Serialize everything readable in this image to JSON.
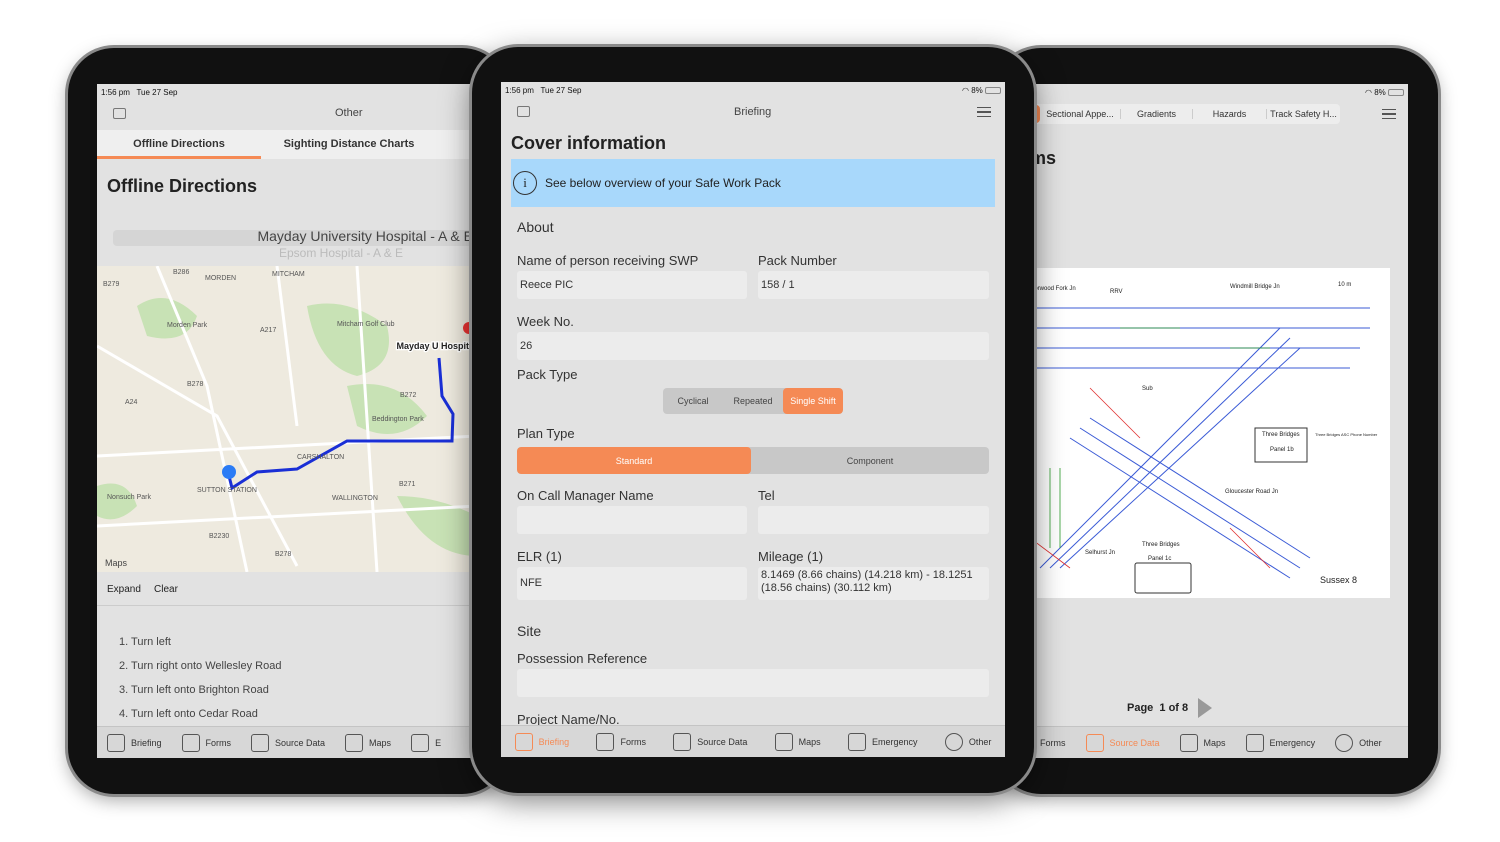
{
  "status": {
    "time": "1:56 pm",
    "date": "Tue 27 Sep",
    "battery": "8%"
  },
  "left": {
    "nav_title": "Other",
    "tabs": [
      "Offline Directions",
      "Sighting Distance Charts"
    ],
    "heading": "Offline Directions",
    "picker": {
      "selected": "Mayday University Hospital - A & E",
      "next": "Epsom Hospital - A & E"
    },
    "map": {
      "labels": [
        "MORDEN",
        "MITCHAM",
        "Morden Park",
        "Mitcham Golf Club",
        "Beddington Park",
        "CARSHALTON",
        "SUTTON STATION",
        "WALLINGTON",
        "Nonsuch Park",
        "Mayday U Hospita"
      ],
      "roads": [
        "B286",
        "B279",
        "A217",
        "B278",
        "B272",
        "A24",
        "B271",
        "B2230",
        "B278"
      ],
      "attribution": "Maps",
      "route_color": "#1a2fd6"
    },
    "actions": [
      "Expand",
      "Clear"
    ],
    "directions": [
      "1. Turn left",
      "2. Turn right onto Wellesley Road",
      "3. Turn left onto Brighton Road",
      "4. Turn left onto Cedar Road"
    ],
    "tabbar": [
      "Briefing",
      "Forms",
      "Source Data",
      "Maps",
      "E"
    ]
  },
  "center": {
    "nav_title": "Briefing",
    "heading": "Cover information",
    "banner": "See below overview of your Safe Work Pack",
    "about": "About",
    "name_label": "Name of person receiving SWP",
    "name_value": "Reece PIC",
    "pack_label": "Pack Number",
    "pack_value": "158 / 1",
    "week_label": "Week No.",
    "week_value": "26",
    "pack_type_label": "Pack Type",
    "pack_types": [
      "Cyclical",
      "Repeated",
      "Single Shift"
    ],
    "pack_type_selected": "Single Shift",
    "plan_type_label": "Plan Type",
    "plan_types": [
      "Standard",
      "Component"
    ],
    "plan_type_selected": "Standard",
    "oncall_label": "On Call Manager Name",
    "oncall_value": "",
    "tel_label": "Tel",
    "tel_value": "",
    "elr_label": "ELR (1)",
    "elr_value": "NFE",
    "mileage_label": "Mileage (1)",
    "mileage_value": "8.1469 (8.66 chains) (14.218 km) - 18.1251 (18.56 chains) (30.112 km)",
    "site": "Site",
    "possession_label": "Possession Reference",
    "possession_value": "",
    "project_label": "Project Name/No.",
    "tabbar": [
      "Briefing",
      "Forms",
      "Source Data",
      "Maps",
      "Emergency",
      "Other"
    ],
    "accent": "#f58a55",
    "banner_color": "#a8d8fb"
  },
  "right": {
    "segments": [
      "Sectional Appe...",
      "Gradients",
      "Hazards",
      "Track Safety H..."
    ],
    "heading_fragment": "ms",
    "diagram": {
      "labels": [
        "Sussex 8",
        "Three Bridges",
        "Panel 1c",
        "Three Bridges",
        "Panel 1b",
        "Three Bridges ASC Phone Number",
        "RRV",
        "Sub",
        "Selhurst Jn",
        "Gloucester Road Jn",
        "Windmill Bridge Jn",
        "Norwood Fork Jn",
        "10 m"
      ]
    },
    "pager": "Page  1 of 8",
    "tabbar": [
      "Forms",
      "Source Data",
      "Maps",
      "Emergency",
      "Other"
    ]
  }
}
